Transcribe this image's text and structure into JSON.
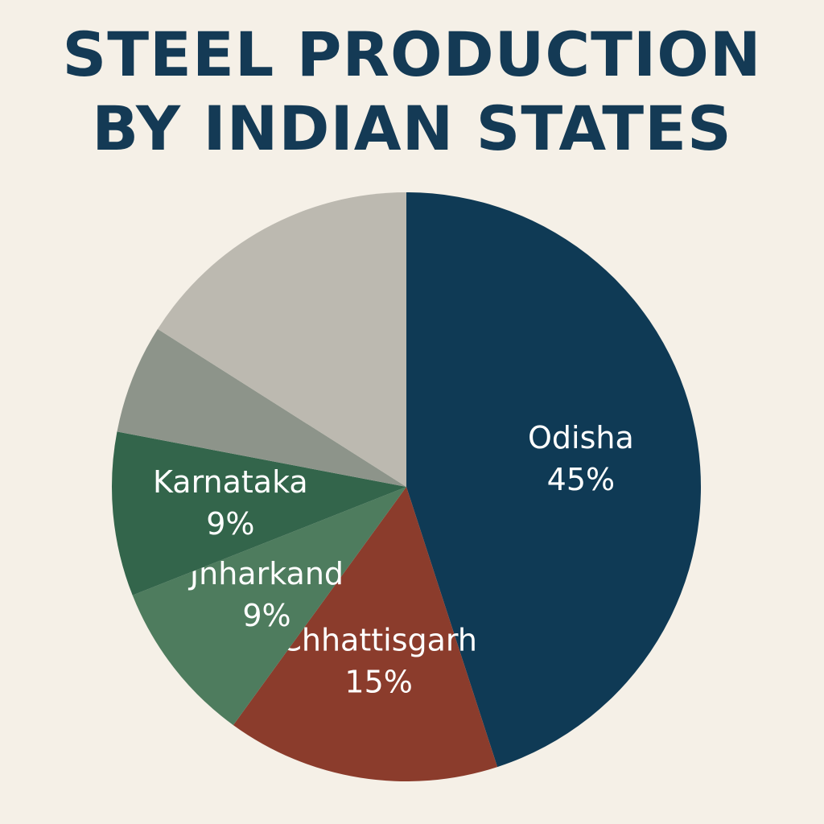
{
  "chart_data": {
    "type": "pie",
    "title": "STEEL PRODUCTION BY INDIAN STATES",
    "categories": [
      "Odisha",
      "Chhattisgarh",
      "Jnharkand",
      "Karnataka",
      null,
      null
    ],
    "values": [
      45,
      15,
      9,
      9,
      6,
      16
    ],
    "value_labels": [
      "45%",
      "15%",
      "9%",
      "9%",
      null,
      null
    ],
    "colors": [
      "#0f3a55",
      "#8b3c2c",
      "#4e7c5e",
      "#33654b",
      "#8d948a",
      "#bcb9b0"
    ]
  }
}
